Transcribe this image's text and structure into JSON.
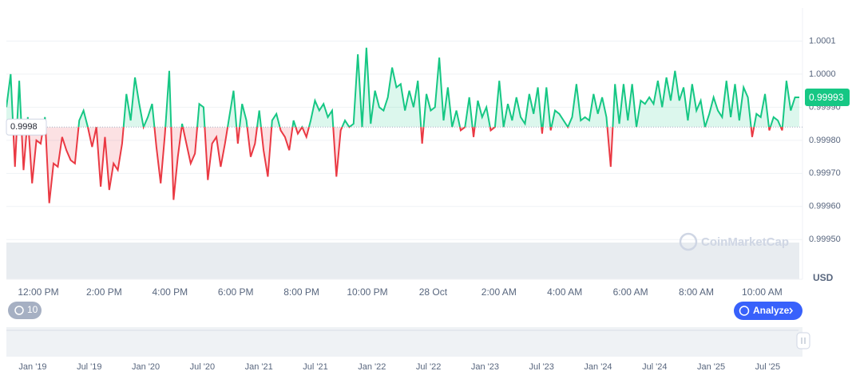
{
  "chart_data": {
    "type": "line",
    "values": [
      0.9999,
      1.0,
      0.99972,
      0.99998,
      0.99971,
      0.99987,
      0.99967,
      0.9998,
      0.99979,
      0.99987,
      0.99961,
      0.99973,
      0.99972,
      0.99981,
      0.99977,
      0.99974,
      0.99973,
      0.99986,
      0.99989,
      0.99984,
      0.99978,
      0.99984,
      0.99966,
      0.99981,
      0.99965,
      0.99973,
      0.99971,
      0.99979,
      0.99994,
      0.99986,
      0.99999,
      0.99991,
      0.99984,
      0.99987,
      0.99991,
      0.99978,
      0.99967,
      0.99982,
      1.00001,
      0.99962,
      0.99975,
      0.99985,
      0.99979,
      0.99973,
      0.99976,
      0.99991,
      0.9999,
      0.99968,
      0.99979,
      0.99981,
      0.99972,
      0.99979,
      0.99987,
      0.99995,
      0.99979,
      0.99991,
      0.99986,
      0.99975,
      0.99979,
      0.99989,
      0.99977,
      0.99969,
      0.99986,
      0.99988,
      0.99983,
      0.99981,
      0.99977,
      0.99986,
      0.99982,
      0.99984,
      0.99981,
      0.99986,
      0.99992,
      0.99989,
      0.99991,
      0.99987,
      0.99989,
      0.99969,
      0.99983,
      0.99986,
      0.99984,
      0.99985,
      1.00006,
      0.99984,
      1.00008,
      0.99985,
      0.99995,
      0.9999,
      0.99989,
      0.99993,
      1.00002,
      0.99996,
      0.99997,
      0.99989,
      0.99995,
      0.9999,
      0.99998,
      0.99979,
      0.99994,
      0.99989,
      0.9999,
      1.00005,
      0.99986,
      0.99996,
      0.99984,
      0.99989,
      0.99983,
      0.99984,
      0.99993,
      0.99981,
      0.99992,
      0.99987,
      0.9999,
      0.99983,
      0.99984,
      0.99998,
      0.99984,
      0.99991,
      0.99986,
      0.99993,
      0.99987,
      0.99985,
      0.99994,
      0.99988,
      0.99996,
      0.99982,
      0.99996,
      0.99983,
      0.99989,
      0.99988,
      0.99986,
      0.99984,
      0.99987,
      0.99997,
      0.99986,
      0.99987,
      0.99986,
      0.99994,
      0.99988,
      0.99993,
      0.99987,
      0.99972,
      0.99997,
      0.99985,
      0.99997,
      0.99986,
      0.99997,
      0.99984,
      0.99992,
      0.99991,
      0.99993,
      0.99991,
      0.99998,
      0.9999,
      0.99999,
      0.99992,
      1.00001,
      0.99992,
      0.99996,
      0.99986,
      0.99997,
      0.99989,
      0.99992,
      0.99984,
      0.99988,
      0.99993,
      0.99989,
      0.99987,
      0.99998,
      0.99987,
      0.99997,
      0.99986,
      0.99996,
      0.99993,
      0.99981,
      0.99988,
      0.99987,
      0.99994,
      0.99983,
      0.99987,
      0.99986,
      0.99983,
      0.99998,
      0.99989,
      0.99993,
      0.99993
    ],
    "up_color": "#16c784",
    "down_color": "#ea3943",
    "baseline": {
      "value": 0.99984,
      "label": "0.9998"
    },
    "current": {
      "value": 0.99993,
      "label": "0.99993"
    },
    "ylim": [
      0.99938,
      1.0002
    ],
    "yticks": [
      1.0001,
      {
        "value": 1.0,
        "label": "1.0000"
      },
      {
        "value": 0.9999,
        "label": "0.99990"
      },
      {
        "value": 0.9998,
        "label": "0.99980"
      },
      {
        "value": 0.9997,
        "label": "0.99970"
      },
      {
        "value": 0.9996,
        "label": "0.99960"
      },
      {
        "value": 0.9995,
        "label": "0.99950"
      }
    ],
    "xtick_labels": [
      "12:00 PM",
      "2:00 PM",
      "4:00 PM",
      "6:00 PM",
      "8:00 PM",
      "10:00 PM",
      "28 Oct",
      "2:00 AM",
      "4:00 AM",
      "6:00 AM",
      "8:00 AM",
      "10:00 AM"
    ],
    "currency": "USD",
    "watermark": "CoinMarketCap",
    "history_button": "10",
    "analyze_button": "Analyze",
    "navigator_labels": [
      "Jan '19",
      "Jul '19",
      "Jan '20",
      "Jul '20",
      "Jan '21",
      "Jul '21",
      "Jan '22",
      "Jul '22",
      "Jan '23",
      "Jul '23",
      "Jan '24",
      "Jul '24",
      "Jan '25",
      "Jul '25"
    ]
  }
}
